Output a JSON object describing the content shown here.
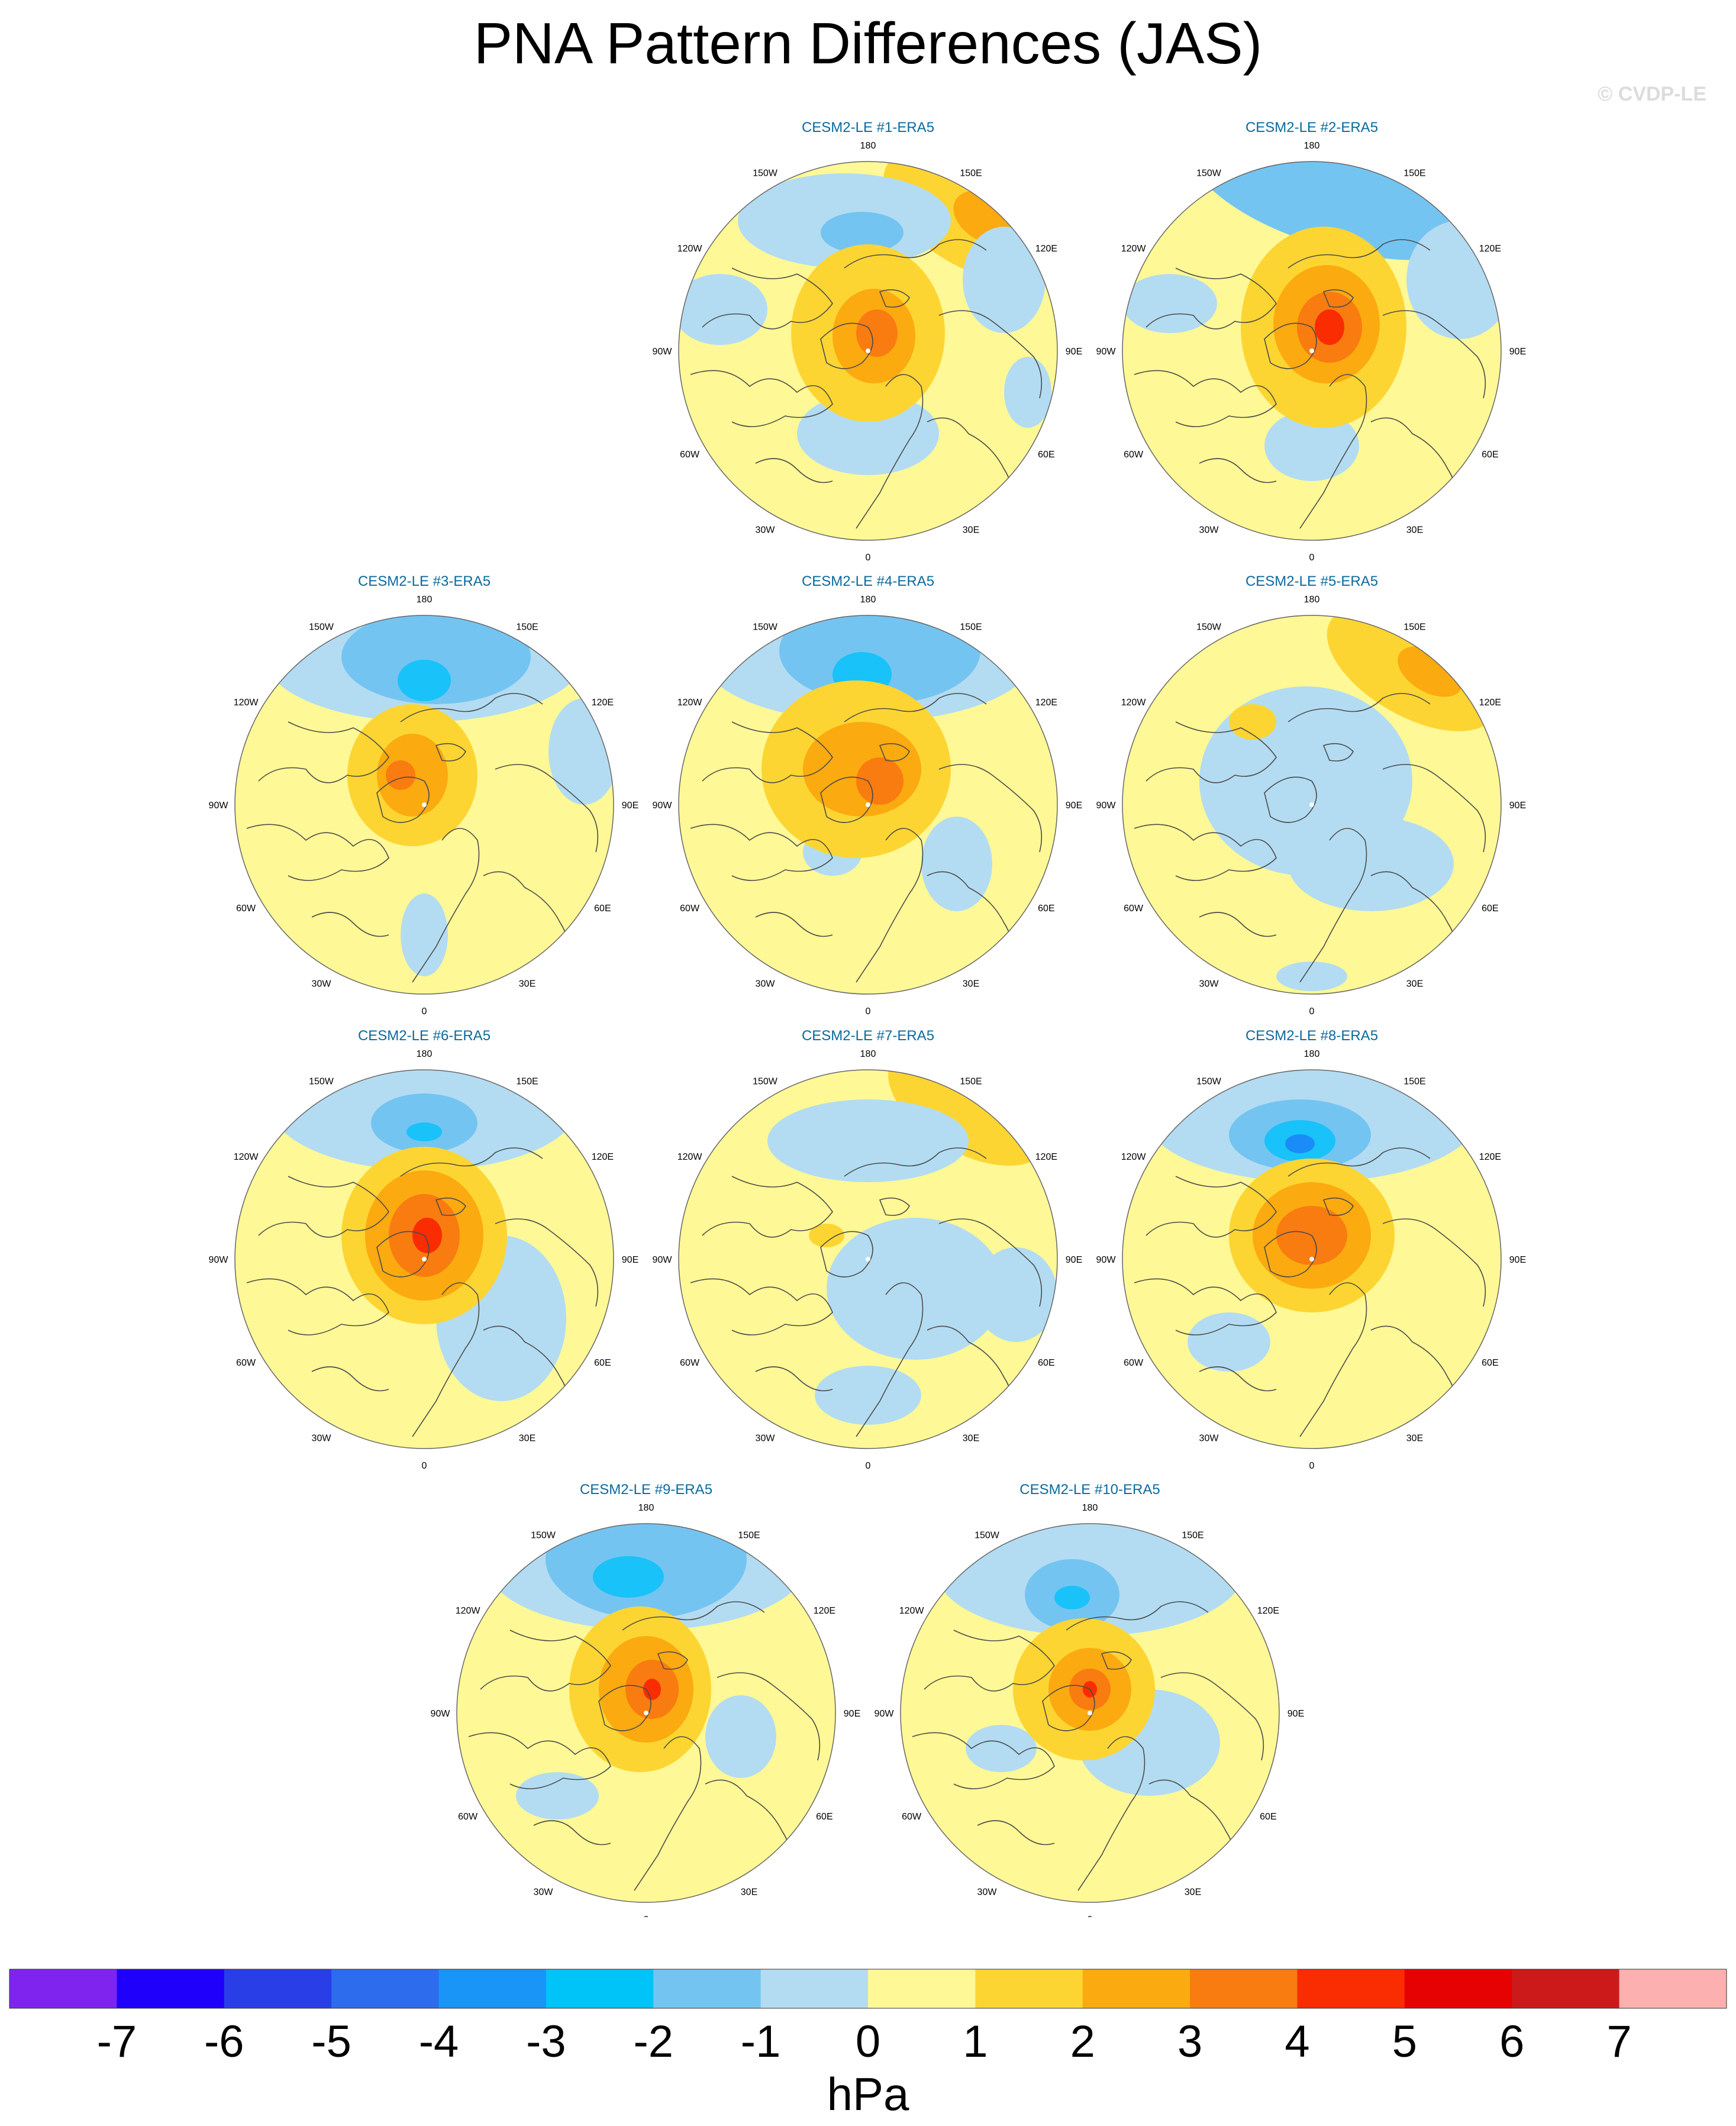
{
  "title": "PNA Pattern Differences (JAS)",
  "watermark": "© CVDP-LE",
  "colors": {
    "neg1": "#b3dcf2",
    "neg2": "#74c4f2",
    "neg3": "#19c2f8",
    "neg4": "#1a8cf7",
    "pos1": "#fff896",
    "pos2": "#fdd532",
    "pos3": "#fbaa10",
    "pos4": "#f97c10",
    "pos5": "#f92c02",
    "pos6": "#e60202",
    "coast": "#4a4a4a",
    "panel_title": "#0b6a9e"
  },
  "panels": [
    {
      "title": "CESM2-LE #1-ERA5"
    },
    {
      "title": "CESM2-LE #2-ERA5"
    },
    {
      "title": "CESM2-LE #3-ERA5"
    },
    {
      "title": "CESM2-LE #4-ERA5"
    },
    {
      "title": "CESM2-LE #5-ERA5"
    },
    {
      "title": "CESM2-LE #6-ERA5"
    },
    {
      "title": "CESM2-LE #7-ERA5"
    },
    {
      "title": "CESM2-LE #8-ERA5"
    },
    {
      "title": "CESM2-LE #9-ERA5"
    },
    {
      "title": "CESM2-LE #10-ERA5"
    }
  ],
  "longitude_labels": [
    "180",
    "150E",
    "120E",
    "90E",
    "60E",
    "30E",
    "0",
    "30W",
    "60W",
    "90W",
    "120W",
    "150W"
  ],
  "colorbar": {
    "unit": "hPa",
    "colors": [
      "#7f24ee",
      "#1f00fa",
      "#2a3ee8",
      "#2c6ced",
      "#1994f7",
      "#00c3f7",
      "#74c4f2",
      "#b3dcf2",
      "#fff896",
      "#fdd532",
      "#fbaa10",
      "#f97c10",
      "#f92c02",
      "#e60202",
      "#cc1a1a",
      "#fdb0b0"
    ],
    "tick_labels": [
      "-7",
      "-6",
      "-5",
      "-4",
      "-3",
      "-2",
      "-1",
      "0",
      "1",
      "2",
      "3",
      "4",
      "5",
      "6",
      "7"
    ]
  }
}
